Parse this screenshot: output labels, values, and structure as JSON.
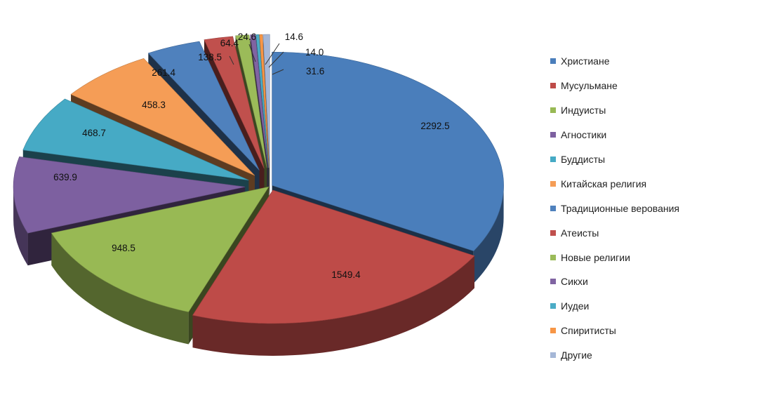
{
  "chart_data": {
    "type": "pie",
    "categories": [
      "Христиане",
      "Мусульмане",
      "Индуисты",
      "Агностики",
      "Буддисты",
      "Китайская религия",
      "Традиционные верования",
      "Атеисты",
      "Новые религии",
      "Сикхи",
      "Иудеи",
      "Спиритисты",
      "Другие"
    ],
    "values": [
      2292.5,
      1549.4,
      948.5,
      639.9,
      468.7,
      458.3,
      261.4,
      138.5,
      64.4,
      24.6,
      14.6,
      14.0,
      31.6
    ],
    "value_labels": [
      "2292.5",
      "1549.4",
      "948.5",
      "639.9",
      "468.7",
      "458.3",
      "261.4",
      "138.5",
      "64.4",
      "24.6",
      "14.6",
      "14.0",
      "31.6"
    ],
    "colors": [
      "#4a7ebb",
      "#be4b48",
      "#98b954",
      "#7d60a0",
      "#46aac5",
      "#f59d56",
      "#4f81bd",
      "#c0504d",
      "#9bbb59",
      "#8064a2",
      "#4bacc6",
      "#f79646",
      "#a5b7d7"
    ],
    "title": "",
    "style": "3d-exploded",
    "legend_position": "right"
  }
}
